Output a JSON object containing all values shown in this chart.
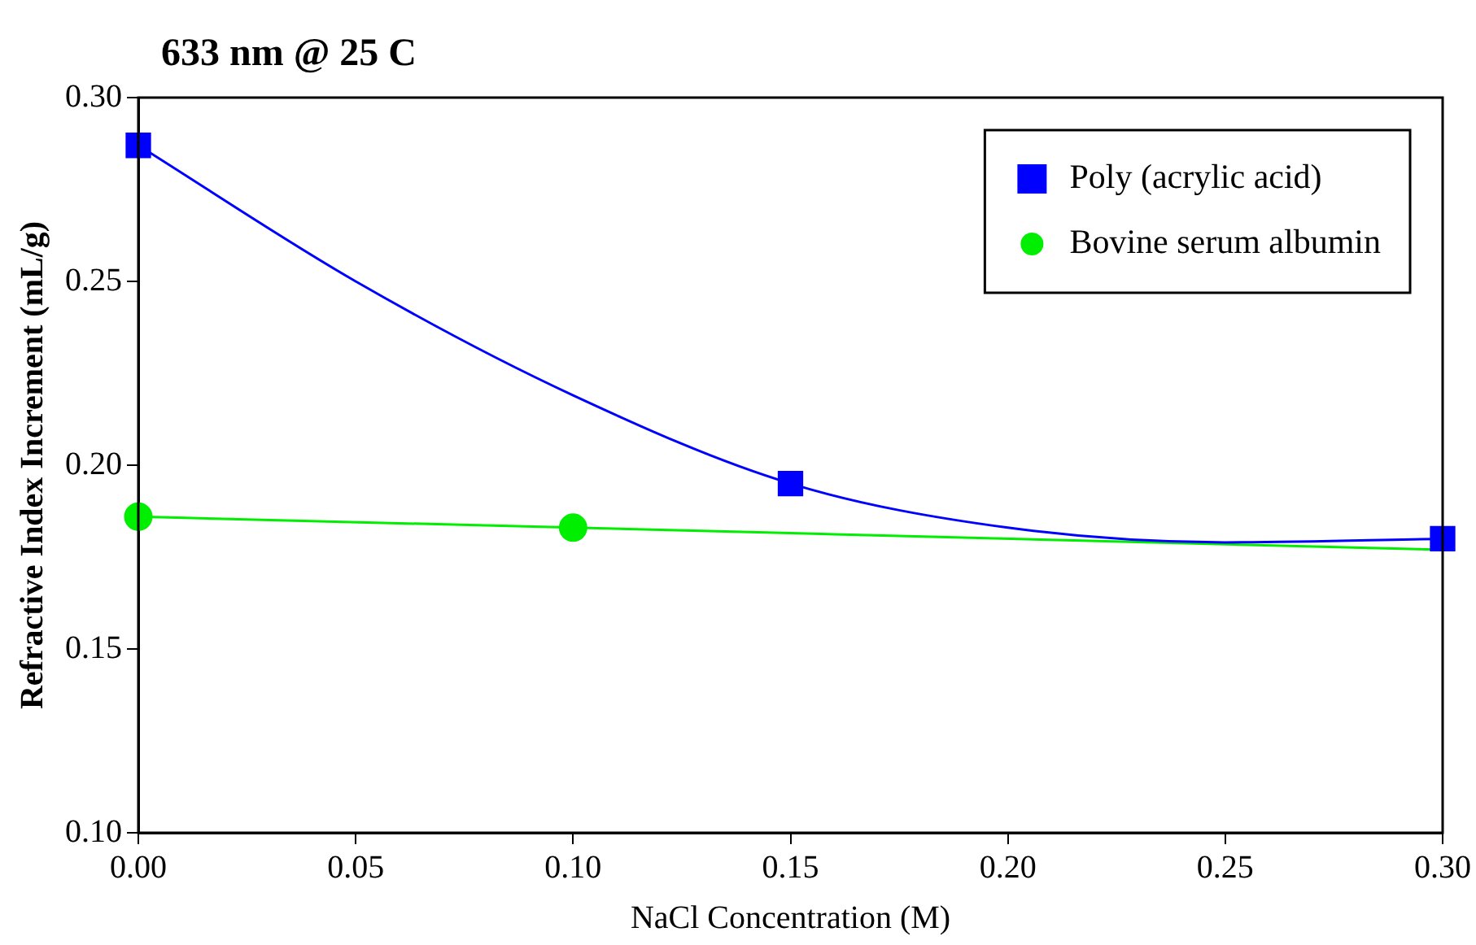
{
  "chart_data": {
    "type": "scatter",
    "title": "633 nm @ 25 C",
    "xlabel": "NaCl Concentration (M)",
    "ylabel": "Refractive Index Increment (mL/g)",
    "xlim": [
      0,
      0.3
    ],
    "xticks": [
      {
        "value": 0,
        "label": "0.00"
      },
      {
        "value": 0.05,
        "label": "0.05"
      },
      {
        "value": 0.1,
        "label": "0.10"
      },
      {
        "value": 0.15,
        "label": "0.15"
      },
      {
        "value": 0.2,
        "label": "0.20"
      },
      {
        "value": 0.25,
        "label": "0.25"
      },
      {
        "value": 0.3,
        "label": "0.30"
      }
    ],
    "ylim": [
      0.1,
      0.3
    ],
    "yticks": [
      {
        "value": 0.1,
        "label": "0.10"
      },
      {
        "value": 0.15,
        "label": "0.15"
      },
      {
        "value": 0.2,
        "label": "0.20"
      },
      {
        "value": 0.25,
        "label": "0.25"
      },
      {
        "value": 0.3,
        "label": "0.30"
      }
    ],
    "grid": false,
    "legend": "top right",
    "series": [
      {
        "name": "Poly (acrylic acid)",
        "color": "#0000ff",
        "marker": "square",
        "x": [
          0,
          0.15,
          0.3
        ],
        "values": [
          0.287,
          0.195,
          0.18
        ]
      },
      {
        "name": "Bovine serum albumin",
        "color": "#00ee00",
        "marker": "circle",
        "x": [
          0,
          0.1
        ],
        "values": [
          0.186,
          0.183
        ]
      },
      {
        "type": "line",
        "color": "#0000ff",
        "marker": "none",
        "x": [
          0,
          0.05,
          0.1,
          0.15,
          0.2,
          0.25,
          0.3
        ],
        "values": [
          0.287,
          0.25,
          0.219,
          0.195,
          0.183,
          0.179,
          0.18
        ]
      },
      {
        "type": "line",
        "color": "#00ee00",
        "marker": "none",
        "x": [
          0,
          0.3
        ],
        "values": [
          0.186,
          0.177
        ]
      }
    ]
  }
}
